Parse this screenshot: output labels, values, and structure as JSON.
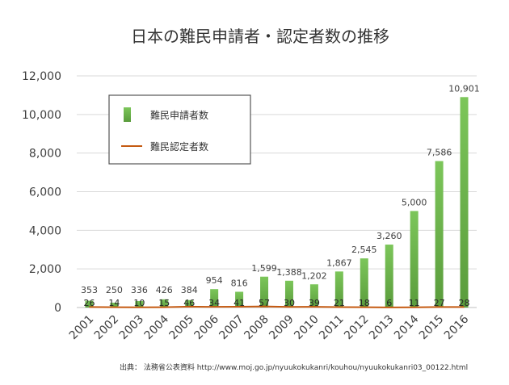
{
  "chart_data": {
    "type": "bar",
    "title": "日本の難民申請者・認定者数の推移",
    "categories": [
      "2001",
      "2002",
      "2003",
      "2004",
      "2005",
      "2006",
      "2007",
      "2008",
      "2009",
      "2010",
      "2011",
      "2012",
      "2013",
      "2014",
      "2015",
      "2016"
    ],
    "series": [
      {
        "name": "難民申請者数",
        "type": "bar",
        "values": [
          353,
          250,
          336,
          426,
          384,
          954,
          816,
          1599,
          1388,
          1202,
          1867,
          2545,
          3260,
          5000,
          7586,
          10901
        ],
        "labels": [
          "353",
          "250",
          "336",
          "426",
          "384",
          "954",
          "816",
          "1,599",
          "1,388",
          "1,202",
          "1,867",
          "2,545",
          "3,260",
          "5,000",
          "7,586",
          "10,901"
        ],
        "color": "#6ab04c"
      },
      {
        "name": "難民認定者数",
        "type": "line",
        "values": [
          26,
          14,
          10,
          15,
          46,
          34,
          41,
          57,
          30,
          39,
          21,
          18,
          6,
          11,
          27,
          28
        ],
        "labels": [
          "26",
          "14",
          "10",
          "15",
          "46",
          "34",
          "41",
          "57",
          "30",
          "39",
          "21",
          "18",
          "6",
          "11",
          "27",
          "28"
        ],
        "color": "#c55a11"
      }
    ],
    "yaxis": {
      "min": 0,
      "max": 12000,
      "ticks": [
        "0",
        "2,000",
        "4,000",
        "6,000",
        "8,000",
        "10,000",
        "12,000"
      ],
      "tick_values": [
        0,
        2000,
        4000,
        6000,
        8000,
        10000,
        12000
      ]
    },
    "grid": true,
    "legend_position": "top-left",
    "source": "出典： 法務省公表資料 http://www.moj.go.jp/nyuukokukanri/kouhou/nyuukokukanri03_00122.html"
  }
}
